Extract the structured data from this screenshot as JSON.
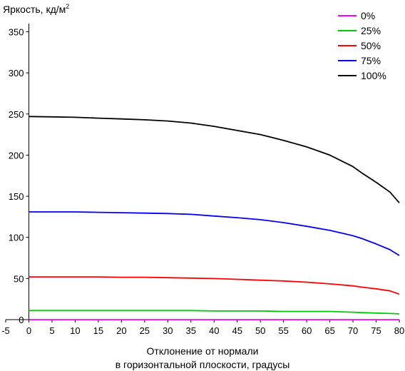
{
  "chart_data": {
    "type": "line",
    "title": "",
    "ylabel": "Яркость, кд/м",
    "ylabel_sup": "2",
    "xlabel_lines": [
      "Отклонение от нормали",
      "в горизонтальной плоскости, градусы"
    ],
    "xlim": [
      -5,
      80
    ],
    "ylim": [
      0,
      360
    ],
    "xticks": [
      "-5",
      "0",
      "5",
      "10",
      "15",
      "20",
      "25",
      "30",
      "35",
      "40",
      "45",
      "50",
      "55",
      "60",
      "65",
      "70",
      "75",
      "80"
    ],
    "yticks": [
      "0",
      "50",
      "100",
      "150",
      "200",
      "250",
      "300",
      "350"
    ],
    "legend_position": "top-right",
    "grid": false,
    "x": [
      0,
      5,
      10,
      15,
      20,
      25,
      30,
      35,
      40,
      45,
      50,
      55,
      60,
      65,
      70,
      72,
      75,
      78,
      80
    ],
    "series": [
      {
        "name": "0%",
        "color": "#ff00ff",
        "values": [
          0,
          0,
          0,
          0,
          0,
          0,
          0,
          0,
          0,
          0,
          0,
          0,
          0,
          0,
          0,
          0,
          0,
          0,
          0
        ]
      },
      {
        "name": "25%",
        "color": "#00cc00",
        "values": [
          11,
          11,
          11,
          11,
          11,
          11,
          11,
          11,
          10.5,
          10.5,
          10.5,
          10,
          10,
          10,
          9,
          8.5,
          8,
          7.5,
          7
        ]
      },
      {
        "name": "50%",
        "color": "#ff0000",
        "values": [
          52,
          52,
          52,
          52,
          51.5,
          51.5,
          51,
          50.5,
          50,
          49,
          48,
          47,
          45.5,
          43.5,
          41,
          39.5,
          37.5,
          35,
          31
        ]
      },
      {
        "name": "75%",
        "color": "#0000ff",
        "values": [
          131,
          131,
          131,
          130.5,
          130,
          129.5,
          129,
          128,
          126,
          124,
          121.5,
          118,
          113.5,
          108.5,
          102,
          98.5,
          92,
          85,
          78
        ]
      },
      {
        "name": "100%",
        "color": "#000000",
        "values": [
          247,
          246.5,
          246,
          245,
          244,
          243,
          241.5,
          239,
          235,
          230,
          225,
          218,
          210,
          200,
          186,
          178,
          167,
          155,
          142
        ]
      }
    ]
  }
}
